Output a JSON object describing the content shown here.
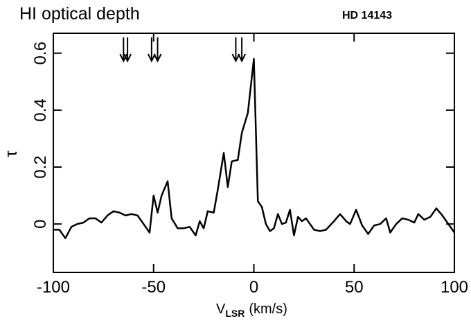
{
  "chart_data": {
    "type": "line",
    "title": "HI optical depth",
    "object": "HD 14143",
    "y_label": "τ",
    "x_label": "V",
    "x_label_sub": "LSR",
    "x_label_unit": "(km/s)",
    "x": [
      -100,
      -97,
      -94,
      -91,
      -88,
      -85,
      -82,
      -79,
      -76,
      -73,
      -70,
      -67,
      -64,
      -61,
      -58,
      -55,
      -52,
      -50,
      -48,
      -46,
      -43,
      -41,
      -38,
      -35,
      -32,
      -29,
      -27,
      -25,
      -23,
      -20,
      -18,
      -15,
      -13,
      -11,
      -8,
      -6,
      -3,
      0,
      2,
      4,
      6,
      8,
      10,
      12,
      14,
      16,
      18,
      20,
      22,
      24,
      26,
      28,
      30,
      33,
      36,
      40,
      43,
      46,
      48,
      51,
      54,
      57,
      60,
      63,
      66,
      68,
      71,
      74,
      77,
      80,
      82,
      85,
      88,
      91,
      94,
      97,
      100
    ],
    "series": [
      {
        "color": "#000000",
        "values": [
          -0.02,
          -0.02,
          -0.05,
          -0.01,
          0,
          0.005,
          0.02,
          0.02,
          0.005,
          0.03,
          0.045,
          0.04,
          0.03,
          0.035,
          0.03,
          0.0,
          -0.03,
          0.1,
          0.04,
          0.1,
          0.15,
          0.02,
          -0.015,
          -0.015,
          -0.01,
          -0.04,
          0.01,
          -0.015,
          0.045,
          0.04,
          0.12,
          0.25,
          0.13,
          0.22,
          0.225,
          0.32,
          0.39,
          0.58,
          0.08,
          0.06,
          0.0,
          -0.025,
          -0.015,
          0.035,
          0.0,
          0.005,
          0.05,
          -0.04,
          0.025,
          0.01,
          0.02,
          0.0,
          -0.02,
          -0.025,
          -0.02,
          0.01,
          0.035,
          0.01,
          0.0,
          0.05,
          -0.005,
          -0.035,
          -0.005,
          0.0,
          0.02,
          -0.03,
          0.0,
          0.02,
          0.015,
          0.005,
          0.035,
          0.015,
          0.025,
          0.055,
          0.03,
          0.0,
          -0.03
        ]
      }
    ],
    "arrows_x": [
      -65,
      -63,
      -51,
      -48,
      -9,
      -6
    ],
    "xlim": [
      -100,
      100
    ],
    "xticks": [
      -100,
      -50,
      0,
      50,
      100
    ],
    "ylim": [
      -0.17,
      0.67
    ],
    "yticks": [
      0,
      0.2,
      0.4,
      0.6
    ]
  }
}
